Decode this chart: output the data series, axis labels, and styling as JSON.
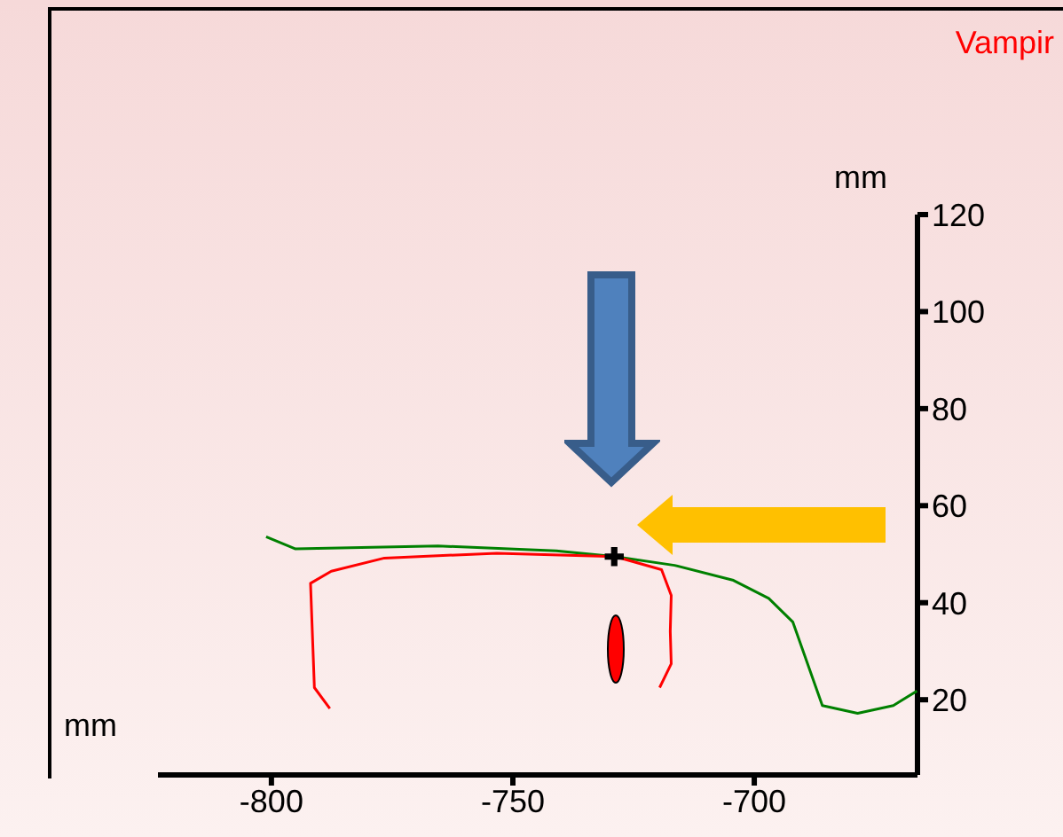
{
  "chart_data": {
    "type": "line",
    "title": "Vampir",
    "xlabel": "mm",
    "ylabel": "mm",
    "xlim": [
      -823.5,
      -666.2
    ],
    "xticks": [
      -800,
      -750,
      -700
    ],
    "ylim": [
      4.5,
      120
    ],
    "yticks": [
      20,
      40,
      60,
      80,
      100,
      120
    ],
    "grid": false,
    "legend": false,
    "line_style": "solid",
    "series": [
      {
        "color": "#008000",
        "x": [
          -801.1,
          -795,
          -765.5,
          -741,
          -728.8,
          -716.5,
          -704.3,
          -697,
          -692,
          -689.6,
          -685.9,
          -678.6,
          -671.2,
          -666.3
        ],
        "values": [
          53.6,
          51.1,
          51.7,
          50.7,
          49.5,
          47.7,
          44.6,
          40.9,
          36,
          29.2,
          18.8,
          17.2,
          18.8,
          21.8
        ]
      },
      {
        "color": "#ff0000",
        "x": [
          -787.9,
          -791.1,
          -791.9,
          -787.6,
          -776.6,
          -753.3,
          -728.8,
          -719.2,
          -717.2,
          -717.4,
          -717.2,
          -719.6
        ],
        "values": [
          18.2,
          22.5,
          44,
          46.5,
          49.2,
          50.2,
          49.5,
          46.8,
          41.5,
          34.1,
          27.4,
          22.5
        ]
      },
      {
        "type": "scatter",
        "marker": "cross",
        "color": "#000000",
        "x": [
          -729
        ],
        "values": [
          49.5
        ]
      }
    ]
  }
}
